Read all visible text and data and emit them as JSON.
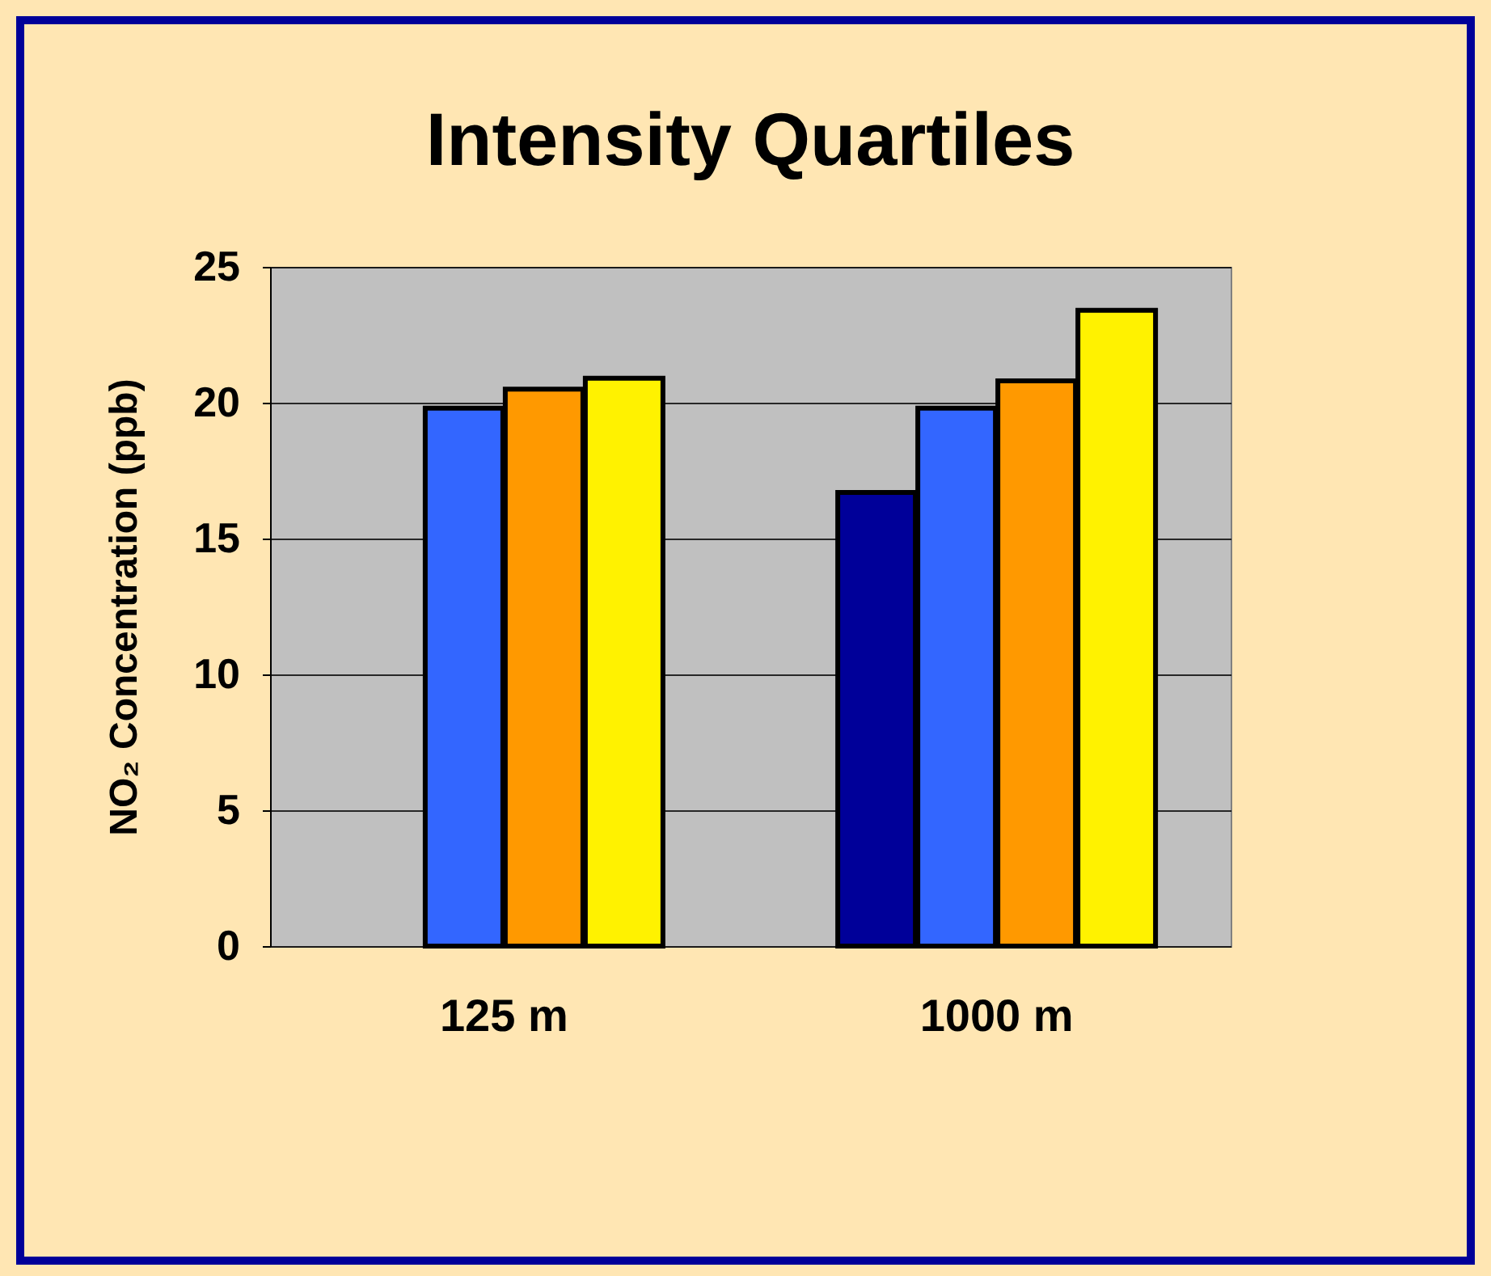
{
  "chart_data": {
    "type": "bar",
    "title": "Intensity Quartiles",
    "ylabel": "NO₂ Concentration (ppb)",
    "categories": [
      "125 m",
      "1000 m"
    ],
    "series": [
      {
        "color": "#000099",
        "values": [
          null,
          16.7
        ]
      },
      {
        "color": "#3366ff",
        "values": [
          19.8,
          19.8
        ]
      },
      {
        "color": "#ff9900",
        "values": [
          20.5,
          20.8
        ]
      },
      {
        "color": "#fff200",
        "values": [
          20.9,
          23.4
        ]
      }
    ],
    "ylim": [
      0,
      25
    ],
    "yticks": [
      0,
      5,
      10,
      15,
      20,
      25
    ],
    "grid": "y",
    "legend": false
  }
}
